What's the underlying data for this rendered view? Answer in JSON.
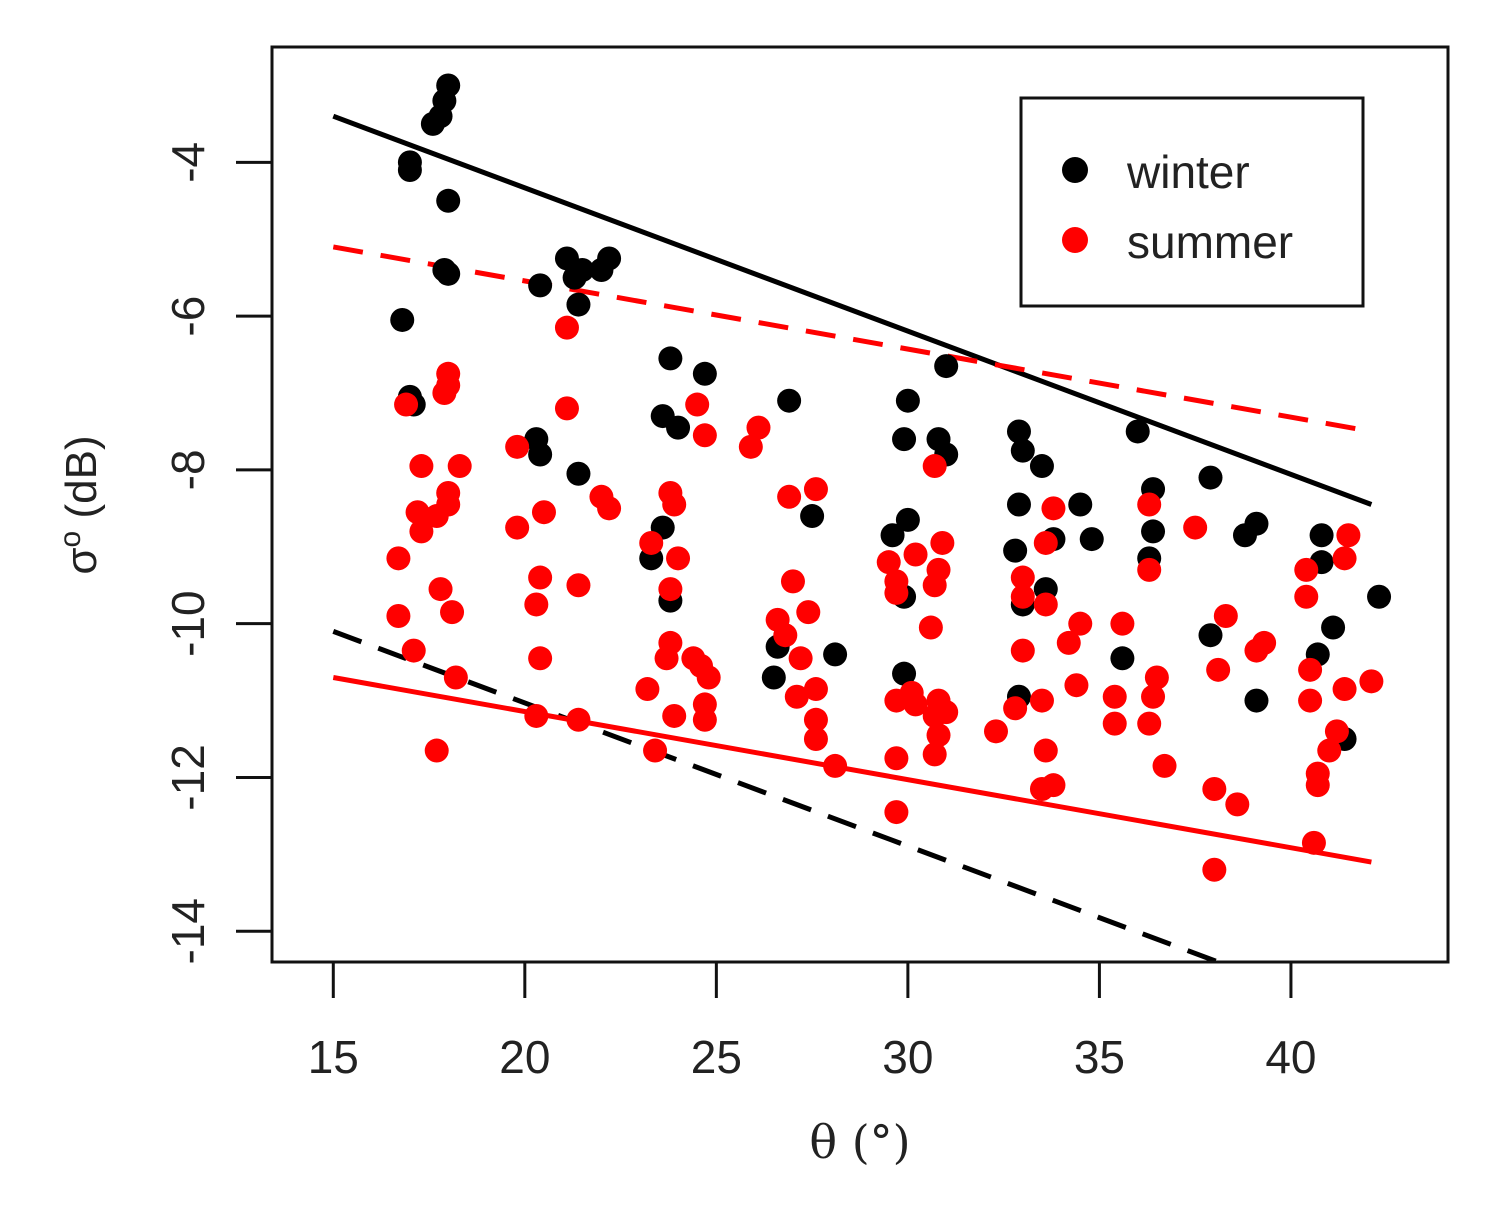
{
  "chart_data": {
    "type": "scatter",
    "title": "",
    "xlabel": "θ (°)",
    "ylabel": "σᵒ (dB)",
    "ylabel_main": "σ",
    "ylabel_sup": "o",
    "ylabel_unit": " (dB)",
    "xlim": [
      13.4,
      44.1
    ],
    "ylim": [
      -14.4,
      -2.5
    ],
    "xticks": [
      15,
      20,
      25,
      30,
      35,
      40
    ],
    "yticks": [
      -4,
      -6,
      -8,
      -10,
      -12,
      -14
    ],
    "xtick_labels": [
      "15",
      "20",
      "25",
      "30",
      "35",
      "40"
    ],
    "ytick_labels": [
      "-4",
      "-6",
      "-8",
      "-10",
      "-12",
      "-14"
    ],
    "grid": false,
    "legend_position": "top-right",
    "colors": {
      "winter": "#000000",
      "summer": "#ff0000"
    },
    "series": [
      {
        "name": "winter",
        "color": "#000000",
        "points": [
          [
            17.0,
            -4.0
          ],
          [
            17.0,
            -4.1
          ],
          [
            17.6,
            -3.5
          ],
          [
            17.8,
            -3.4
          ],
          [
            17.9,
            -3.2
          ],
          [
            18.0,
            -3.0
          ],
          [
            18.0,
            -4.5
          ],
          [
            17.9,
            -5.4
          ],
          [
            18.0,
            -5.45
          ],
          [
            16.8,
            -6.05
          ],
          [
            17.0,
            -7.05
          ],
          [
            17.1,
            -7.15
          ],
          [
            20.3,
            -7.6
          ],
          [
            20.4,
            -7.8
          ],
          [
            20.4,
            -5.6
          ],
          [
            21.1,
            -5.25
          ],
          [
            21.3,
            -5.5
          ],
          [
            21.5,
            -5.4
          ],
          [
            21.4,
            -5.85
          ],
          [
            22.0,
            -5.4
          ],
          [
            22.2,
            -5.25
          ],
          [
            21.4,
            -8.05
          ],
          [
            23.8,
            -6.55
          ],
          [
            24.7,
            -6.75
          ],
          [
            23.6,
            -7.3
          ],
          [
            24.0,
            -7.45
          ],
          [
            23.6,
            -8.75
          ],
          [
            23.3,
            -9.15
          ],
          [
            23.8,
            -9.7
          ],
          [
            26.9,
            -7.1
          ],
          [
            27.5,
            -8.6
          ],
          [
            26.6,
            -10.3
          ],
          [
            26.5,
            -10.7
          ],
          [
            28.1,
            -10.4
          ],
          [
            30.0,
            -7.1
          ],
          [
            29.9,
            -7.6
          ],
          [
            30.8,
            -7.6
          ],
          [
            31.0,
            -7.8
          ],
          [
            31.0,
            -6.65
          ],
          [
            30.0,
            -8.65
          ],
          [
            29.6,
            -8.85
          ],
          [
            29.9,
            -9.65
          ],
          [
            29.9,
            -10.65
          ],
          [
            32.9,
            -7.5
          ],
          [
            33.0,
            -7.75
          ],
          [
            33.5,
            -7.95
          ],
          [
            32.9,
            -8.45
          ],
          [
            33.8,
            -8.9
          ],
          [
            32.8,
            -9.05
          ],
          [
            33.6,
            -9.55
          ],
          [
            33.0,
            -9.75
          ],
          [
            32.9,
            -10.95
          ],
          [
            34.5,
            -8.45
          ],
          [
            34.8,
            -8.9
          ],
          [
            36.0,
            -7.5
          ],
          [
            36.4,
            -8.25
          ],
          [
            36.4,
            -8.8
          ],
          [
            36.3,
            -9.15
          ],
          [
            35.6,
            -10.45
          ],
          [
            37.9,
            -8.1
          ],
          [
            38.8,
            -8.85
          ],
          [
            39.1,
            -8.7
          ],
          [
            37.9,
            -10.15
          ],
          [
            39.1,
            -11.0
          ],
          [
            40.8,
            -8.85
          ],
          [
            40.8,
            -9.2
          ],
          [
            41.1,
            -10.05
          ],
          [
            40.7,
            -10.4
          ],
          [
            41.4,
            -11.5
          ],
          [
            42.3,
            -9.65
          ]
        ]
      },
      {
        "name": "summer",
        "color": "#ff0000",
        "points": [
          [
            16.9,
            -7.15
          ],
          [
            17.3,
            -7.95
          ],
          [
            17.2,
            -8.55
          ],
          [
            17.3,
            -8.8
          ],
          [
            16.7,
            -9.15
          ],
          [
            16.7,
            -9.9
          ],
          [
            17.1,
            -10.35
          ],
          [
            17.7,
            -8.6
          ],
          [
            18.0,
            -6.75
          ],
          [
            18.0,
            -6.9
          ],
          [
            17.9,
            -7.0
          ],
          [
            18.0,
            -8.3
          ],
          [
            18.0,
            -8.45
          ],
          [
            18.3,
            -7.95
          ],
          [
            17.8,
            -9.55
          ],
          [
            18.1,
            -9.85
          ],
          [
            18.2,
            -10.7
          ],
          [
            17.7,
            -11.65
          ],
          [
            19.8,
            -7.7
          ],
          [
            19.8,
            -8.75
          ],
          [
            20.5,
            -8.55
          ],
          [
            20.4,
            -9.4
          ],
          [
            20.3,
            -9.75
          ],
          [
            20.4,
            -10.45
          ],
          [
            20.3,
            -11.2
          ],
          [
            21.1,
            -6.15
          ],
          [
            21.1,
            -7.2
          ],
          [
            21.4,
            -9.5
          ],
          [
            21.4,
            -11.25
          ],
          [
            22.0,
            -8.35
          ],
          [
            22.2,
            -8.5
          ],
          [
            23.3,
            -8.95
          ],
          [
            23.8,
            -8.3
          ],
          [
            23.9,
            -8.45
          ],
          [
            24.0,
            -9.15
          ],
          [
            23.8,
            -9.55
          ],
          [
            23.8,
            -10.25
          ],
          [
            23.7,
            -10.45
          ],
          [
            23.2,
            -10.85
          ],
          [
            23.9,
            -11.2
          ],
          [
            23.4,
            -11.65
          ],
          [
            24.5,
            -7.15
          ],
          [
            24.7,
            -7.55
          ],
          [
            24.4,
            -10.45
          ],
          [
            24.6,
            -10.55
          ],
          [
            24.8,
            -10.7
          ],
          [
            24.7,
            -11.05
          ],
          [
            24.7,
            -11.25
          ],
          [
            26.1,
            -7.45
          ],
          [
            25.9,
            -7.7
          ],
          [
            26.9,
            -8.35
          ],
          [
            27.6,
            -8.25
          ],
          [
            27.0,
            -9.45
          ],
          [
            26.6,
            -9.95
          ],
          [
            26.8,
            -10.15
          ],
          [
            27.4,
            -9.85
          ],
          [
            27.2,
            -10.45
          ],
          [
            27.1,
            -10.95
          ],
          [
            27.6,
            -10.85
          ],
          [
            27.6,
            -11.25
          ],
          [
            27.6,
            -11.5
          ],
          [
            28.1,
            -11.85
          ],
          [
            29.5,
            -9.2
          ],
          [
            29.7,
            -9.45
          ],
          [
            29.7,
            -9.6
          ],
          [
            30.2,
            -9.1
          ],
          [
            29.7,
            -11.0
          ],
          [
            30.1,
            -10.9
          ],
          [
            30.2,
            -11.05
          ],
          [
            29.7,
            -11.75
          ],
          [
            29.7,
            -12.45
          ],
          [
            30.7,
            -7.95
          ],
          [
            30.9,
            -8.95
          ],
          [
            30.8,
            -9.3
          ],
          [
            30.7,
            -9.5
          ],
          [
            30.6,
            -10.05
          ],
          [
            30.8,
            -11.0
          ],
          [
            30.7,
            -11.2
          ],
          [
            31.0,
            -11.15
          ],
          [
            30.8,
            -11.45
          ],
          [
            30.7,
            -11.7
          ],
          [
            32.3,
            -11.4
          ],
          [
            32.8,
            -11.1
          ],
          [
            33.0,
            -9.4
          ],
          [
            33.0,
            -9.65
          ],
          [
            33.6,
            -9.75
          ],
          [
            33.6,
            -8.95
          ],
          [
            33.8,
            -8.5
          ],
          [
            33.0,
            -10.35
          ],
          [
            33.5,
            -11.0
          ],
          [
            33.6,
            -11.65
          ],
          [
            33.5,
            -12.15
          ],
          [
            33.8,
            -12.1
          ],
          [
            34.2,
            -10.25
          ],
          [
            34.5,
            -10.0
          ],
          [
            34.4,
            -10.8
          ],
          [
            35.4,
            -10.95
          ],
          [
            35.4,
            -11.3
          ],
          [
            35.6,
            -10.0
          ],
          [
            36.3,
            -8.45
          ],
          [
            36.3,
            -9.3
          ],
          [
            36.5,
            -10.7
          ],
          [
            36.4,
            -10.95
          ],
          [
            36.3,
            -11.3
          ],
          [
            36.7,
            -11.85
          ],
          [
            37.5,
            -8.75
          ],
          [
            38.1,
            -10.6
          ],
          [
            38.3,
            -9.9
          ],
          [
            38.0,
            -12.15
          ],
          [
            38.6,
            -12.35
          ],
          [
            38.0,
            -13.2
          ],
          [
            39.1,
            -10.35
          ],
          [
            39.3,
            -10.25
          ],
          [
            40.4,
            -9.3
          ],
          [
            40.4,
            -9.65
          ],
          [
            40.5,
            -10.6
          ],
          [
            40.5,
            -11.0
          ],
          [
            40.7,
            -11.95
          ],
          [
            40.7,
            -12.1
          ],
          [
            40.6,
            -12.85
          ],
          [
            41.0,
            -11.65
          ],
          [
            41.2,
            -11.4
          ],
          [
            41.4,
            -10.85
          ],
          [
            41.4,
            -9.15
          ],
          [
            41.5,
            -8.85
          ],
          [
            42.1,
            -10.75
          ]
        ]
      }
    ],
    "lines": [
      {
        "series": "winter",
        "style": "solid",
        "color": "#000000",
        "x": [
          15,
          42.1
        ],
        "y": [
          -3.4,
          -8.45
        ]
      },
      {
        "series": "winter",
        "style": "dashed",
        "color": "#000000",
        "x": [
          15,
          38.1
        ],
        "y": [
          -10.1,
          -14.4
        ]
      },
      {
        "series": "summer",
        "style": "dashed",
        "color": "#ff0000",
        "x": [
          15,
          42.1
        ],
        "y": [
          -5.1,
          -7.5
        ]
      },
      {
        "series": "summer",
        "style": "solid",
        "color": "#ff0000",
        "x": [
          15,
          42.1
        ],
        "y": [
          -10.7,
          -13.1
        ]
      }
    ]
  }
}
